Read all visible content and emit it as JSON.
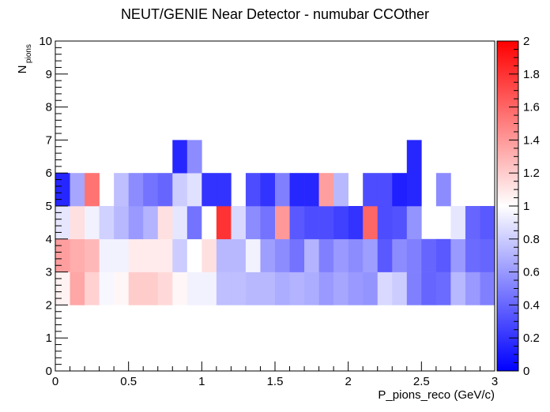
{
  "chart_data": {
    "type": "heatmap",
    "title": "NEUT/GENIE Near Detector - numubar CCOther",
    "xlabel": "P_pions_reco (GeV/c)",
    "ylabel": "N",
    "ylabel_sub": "pions",
    "xlim": [
      0,
      3
    ],
    "ylim": [
      0,
      10
    ],
    "x_bin_width": 0.1,
    "y_bin_width": 1,
    "x_ticks": [
      "0",
      "0.5",
      "1",
      "1.5",
      "2",
      "2.5",
      "3"
    ],
    "y_ticks": [
      "0",
      "1",
      "2",
      "3",
      "4",
      "5",
      "6",
      "7",
      "8",
      "9",
      "10"
    ],
    "colorbar": {
      "range": [
        0,
        2
      ],
      "ticks": [
        "0",
        "0.2",
        "0.4",
        "0.6",
        "0.8",
        "1",
        "1.2",
        "1.4",
        "1.6",
        "1.8",
        "2"
      ],
      "low_color": "#0000ff",
      "mid_color": "#ffffff",
      "high_color": "#ff0000"
    },
    "rows": [
      {
        "y": 2,
        "values": [
          1.05,
          1.35,
          1.18,
          0.97,
          1.03,
          1.2,
          1.2,
          1.15,
          1.03,
          0.95,
          0.95,
          0.75,
          0.75,
          0.72,
          0.72,
          0.68,
          0.7,
          0.68,
          0.6,
          0.65,
          0.6,
          0.58,
          0.85,
          0.8,
          0.5,
          0.4,
          0.42,
          0.72,
          0.6,
          0.5
        ]
      },
      {
        "y": 3,
        "values": [
          1.38,
          1.32,
          1.28,
          0.95,
          0.95,
          1.08,
          1.08,
          1.08,
          0.8,
          1.0,
          1.12,
          0.72,
          0.72,
          0.95,
          0.62,
          0.55,
          0.45,
          0.7,
          0.5,
          0.6,
          0.55,
          0.62,
          0.35,
          0.55,
          0.5,
          0.4,
          0.35,
          0.6,
          0.42,
          0.4
        ]
      },
      {
        "y": 4,
        "values": [
          0.9,
          1.12,
          0.95,
          0.82,
          0.72,
          0.6,
          0.7,
          1.12,
          0.9,
          0.45,
          1.0,
          1.8,
          0.85,
          0.55,
          0.45,
          1.4,
          0.35,
          0.3,
          0.3,
          0.25,
          0.2,
          1.6,
          0.3,
          0.32,
          0.58,
          null,
          null,
          0.9,
          0.4,
          0.35
        ]
      },
      {
        "y": 5,
        "values": [
          0.15,
          0.65,
          1.55,
          null,
          0.75,
          0.55,
          0.45,
          0.4,
          0.8,
          0.88,
          0.2,
          0.2,
          null,
          0.3,
          0.2,
          0.5,
          0.15,
          0.15,
          1.38,
          0.72,
          null,
          0.3,
          0.3,
          0.12,
          0.15,
          null,
          0.55,
          null,
          null,
          null
        ]
      },
      {
        "y": 6,
        "values": [
          null,
          null,
          null,
          null,
          null,
          null,
          null,
          null,
          0.15,
          0.55,
          null,
          null,
          null,
          null,
          null,
          null,
          null,
          null,
          null,
          null,
          null,
          null,
          null,
          null,
          0.15,
          null,
          null,
          null,
          null,
          null
        ]
      }
    ]
  }
}
